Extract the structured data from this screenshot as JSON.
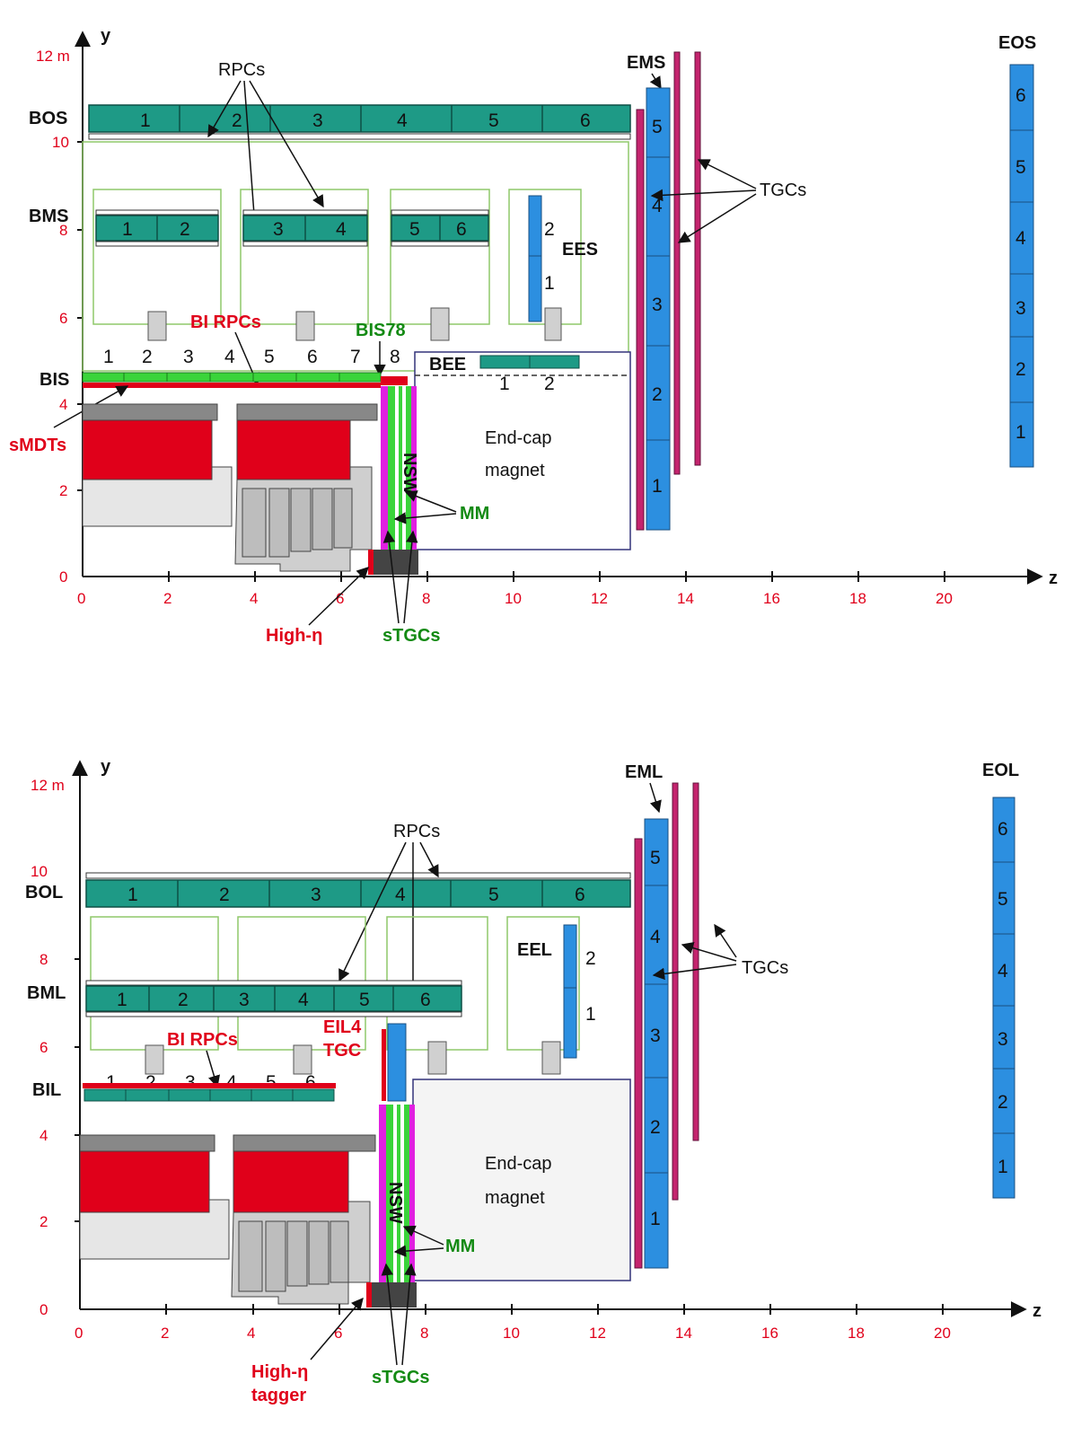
{
  "top": {
    "axis": {
      "y_label": "y",
      "z_label": "z",
      "y_ticks": [
        "12 m",
        "10",
        "8",
        "6",
        "4",
        "2",
        "0"
      ],
      "z_ticks": [
        "0",
        "2",
        "4",
        "6",
        "8",
        "10",
        "12",
        "14",
        "16",
        "18",
        "20"
      ]
    },
    "stations": {
      "outer": "BOS",
      "middle": "BMS",
      "inner": "BIS",
      "em": "EMS",
      "eo": "EOS",
      "ee": "EES",
      "bee": "BEE"
    },
    "outer_cells": [
      "1",
      "2",
      "3",
      "4",
      "5",
      "6"
    ],
    "middle_cells": [
      "1",
      "2",
      "3",
      "4",
      "5",
      "6"
    ],
    "inner_numbers": [
      "1",
      "2",
      "3",
      "4",
      "5",
      "6",
      "7",
      "8"
    ],
    "ee_cells": [
      "2",
      "1"
    ],
    "bee_cells": [
      "1",
      "2"
    ],
    "em_cells": [
      "5",
      "4",
      "3",
      "2",
      "1"
    ],
    "eo_cells": [
      "6",
      "5",
      "4",
      "3",
      "2",
      "1"
    ],
    "labels": {
      "rpcs": "RPCs",
      "tgcs": "TGCs",
      "bi_rpcs": "BI RPCs",
      "bis78": "BIS78",
      "smdts": "sMDTs",
      "endcap1": "End-cap",
      "endcap2": "magnet",
      "nsw": "NSW",
      "mm": "MM",
      "high_eta": "High-η",
      "stgcs": "sTGCs"
    }
  },
  "bottom": {
    "axis": {
      "y_label": "y",
      "z_label": "z",
      "y_ticks": [
        "12 m",
        "10",
        "8",
        "6",
        "4",
        "2",
        "0"
      ],
      "z_ticks": [
        "0",
        "2",
        "4",
        "6",
        "8",
        "10",
        "12",
        "14",
        "16",
        "18",
        "20"
      ]
    },
    "stations": {
      "outer": "BOL",
      "middle": "BML",
      "inner": "BIL",
      "em": "EML",
      "eo": "EOL",
      "ee": "EEL"
    },
    "outer_cells": [
      "1",
      "2",
      "3",
      "4",
      "5",
      "6"
    ],
    "middle_cells": [
      "1",
      "2",
      "3",
      "4",
      "5",
      "6"
    ],
    "inner_numbers": [
      "1",
      "2",
      "3",
      "4",
      "5",
      "6"
    ],
    "ee_cells": [
      "2",
      "1"
    ],
    "em_cells": [
      "5",
      "4",
      "3",
      "2",
      "1"
    ],
    "eo_cells": [
      "6",
      "5",
      "4",
      "3",
      "2",
      "1"
    ],
    "labels": {
      "rpcs": "RPCs",
      "tgcs": "TGCs",
      "bi_rpcs": "BI RPCs",
      "eil4_1": "EIL4",
      "eil4_2": "TGC",
      "endcap1": "End-cap",
      "endcap2": "magnet",
      "nsw": "NSW",
      "mm": "MM",
      "high_eta1": "High-η",
      "high_eta2": "tagger",
      "stgcs": "sTGCs"
    }
  },
  "colors": {
    "chamber": "#1e9a86",
    "endcap_chamber": "#2c8fe0",
    "red": "#e0001a",
    "magenta": "#c4246e",
    "nsw_magenta": "#e020e0",
    "nsw_green": "#3ad43a",
    "green_frame": "#8fc86a",
    "navy": "#33337a",
    "grey": "#bcbcbc"
  }
}
